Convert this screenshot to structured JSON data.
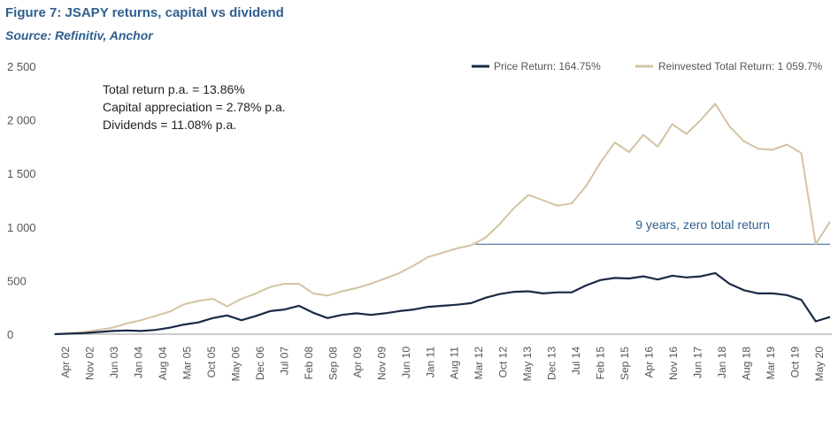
{
  "title": "Figure 7: JSAPY returns, capital vs dividend",
  "source": "Source: Refinitiv, Anchor",
  "chart_data": {
    "type": "line",
    "ylim": [
      0,
      2500
    ],
    "yticks": [
      "0",
      "500",
      "1 000",
      "1 500",
      "2 000",
      "2 500"
    ],
    "xticks": [
      "Apr 02",
      "Nov 02",
      "Jun 03",
      "Jan 04",
      "Aug 04",
      "Mar 05",
      "Oct 05",
      "May 06",
      "Dec 06",
      "Jul 07",
      "Feb 08",
      "Sep 08",
      "Apr 09",
      "Nov 09",
      "Jun 10",
      "Jan 11",
      "Aug 11",
      "Mar 12",
      "Oct 12",
      "May 13",
      "Dec 13",
      "Jul 14",
      "Feb 15",
      "Sep 15",
      "Apr 16",
      "Nov 16",
      "Jun 17",
      "Jan 18",
      "Aug 18",
      "Mar 19",
      "Oct 19",
      "May 20"
    ],
    "legend_position": "top-right",
    "notes": [
      "Total return p.a. = 13.86%",
      "Capital appreciation = 2.78% p.a.",
      "Dividends = 11.08% p.a."
    ],
    "annotation": {
      "text": "9 years, zero total return",
      "y": 840,
      "x_from": "Mar 12",
      "x_to": "May 20"
    },
    "series": [
      {
        "name": "Price Return: 164.75%",
        "color": "#1a2a44",
        "values": [
          0,
          5,
          10,
          20,
          30,
          35,
          30,
          40,
          60,
          90,
          110,
          150,
          175,
          130,
          170,
          215,
          230,
          265,
          200,
          150,
          180,
          195,
          180,
          195,
          215,
          230,
          255,
          265,
          275,
          290,
          340,
          375,
          395,
          400,
          380,
          390,
          390,
          455,
          505,
          525,
          520,
          540,
          510,
          545,
          530,
          540,
          570,
          470,
          410,
          380,
          380,
          365,
          320,
          120,
          160
        ]
      },
      {
        "name": "Reinvested Total Return: 1 059.7%",
        "color": "#d4c3a3",
        "values": [
          0,
          8,
          20,
          40,
          60,
          100,
          130,
          170,
          210,
          280,
          310,
          330,
          260,
          330,
          380,
          440,
          470,
          470,
          380,
          360,
          400,
          430,
          470,
          520,
          570,
          640,
          720,
          760,
          800,
          830,
          900,
          1030,
          1180,
          1300,
          1250,
          1200,
          1220,
          1380,
          1600,
          1790,
          1700,
          1860,
          1750,
          1960,
          1870,
          2000,
          2150,
          1940,
          1800,
          1730,
          1720,
          1770,
          1690,
          840,
          1050
        ]
      }
    ]
  }
}
